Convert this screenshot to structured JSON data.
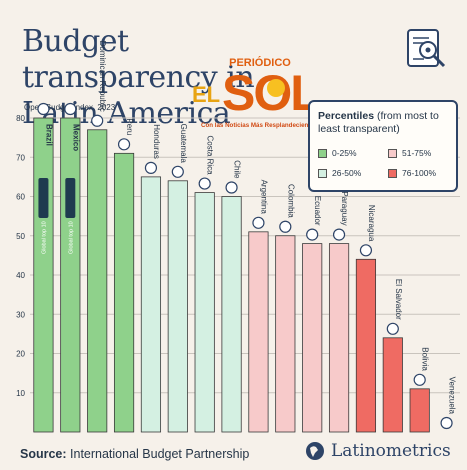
{
  "header": {
    "title": "Budget transparency in Latin America"
  },
  "logo": {
    "words": [
      "PERIÓDICO",
      "EL",
      "SOL"
    ],
    "tagline": "Con las Noticias Más Resplandecientes"
  },
  "legend": {
    "title_bold": "Percentiles",
    "title_rest": " (from most to least transparent)",
    "items": [
      {
        "label": "0-25%",
        "color": "#8fd18b"
      },
      {
        "label": "51-75%",
        "color": "#f7caca"
      },
      {
        "label": "26-50%",
        "color": "#d4f0e2"
      },
      {
        "label": "76-100%",
        "color": "#ef6b63"
      }
    ]
  },
  "badge": "Global top 10",
  "footer": {
    "source_label": "Source:",
    "source_text": " International Budget Partnership",
    "brand": "Latinometrics"
  },
  "chart_data": {
    "type": "bar",
    "subtitle": "Open Budget Index, 2023",
    "ylim": [
      0,
      80
    ],
    "yticks": [
      10,
      20,
      30,
      40,
      50,
      60,
      70,
      80
    ],
    "grid": true,
    "legend_position": "top-right",
    "categories": [
      "Brazil",
      "Mexico",
      "Dominican Republic",
      "Peru",
      "Honduras",
      "Guatemala",
      "Costa Rica",
      "Chile",
      "Argentina",
      "Colombia",
      "Ecuador",
      "Paraguay",
      "Nicaragua",
      "El Salvador",
      "Bolivia",
      "Venezuela"
    ],
    "values": [
      80,
      80,
      77,
      71,
      65,
      64,
      61,
      60,
      51,
      50,
      48,
      48,
      44,
      24,
      11,
      0
    ],
    "percentile": [
      "0-25%",
      "0-25%",
      "0-25%",
      "0-25%",
      "26-50%",
      "26-50%",
      "26-50%",
      "26-50%",
      "51-75%",
      "51-75%",
      "51-75%",
      "51-75%",
      "76-100%",
      "76-100%",
      "76-100%",
      "76-100%"
    ],
    "global_top_10": [
      "Brazil",
      "Mexico"
    ]
  }
}
